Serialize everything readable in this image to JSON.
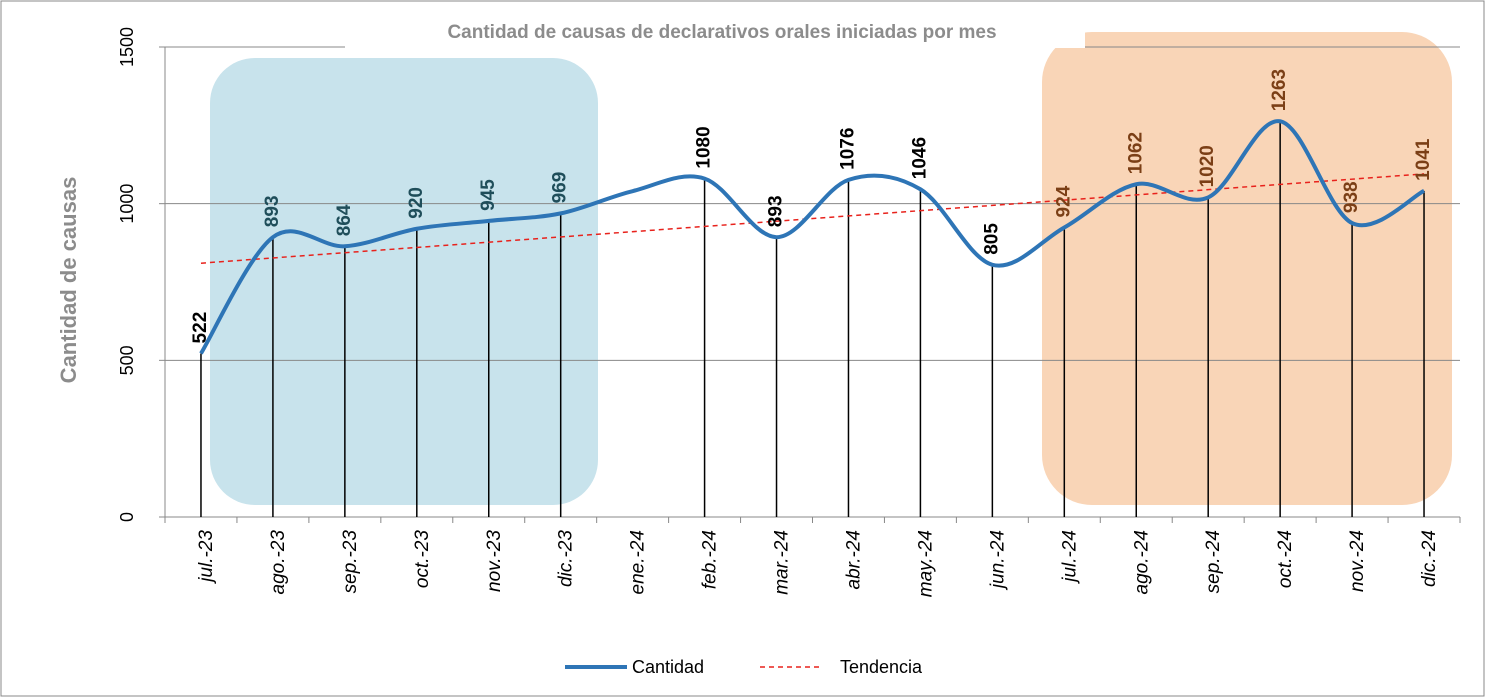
{
  "chart_data": {
    "type": "line",
    "title": "Cantidad de causas de declarativos orales iniciadas por mes",
    "y_label": "Cantidad de causas",
    "categories": [
      "jul.-23",
      "ago.-23",
      "sep.-23",
      "oct.-23",
      "nov.-23",
      "dic.-23",
      "ene.-24",
      "feb.-24",
      "mar.-24",
      "abr.-24",
      "may.-24",
      "jun.-24",
      "jul.-24",
      "ago.-24",
      "sep.-24",
      "oct.-24",
      "nov.-24",
      "dic.-24"
    ],
    "series": [
      {
        "name": "Cantidad",
        "color": "#2e75b6",
        "values": [
          522,
          893,
          864,
          920,
          945,
          969,
          1040,
          1080,
          893,
          1076,
          1046,
          805,
          924,
          1062,
          1020,
          1263,
          938,
          1041
        ],
        "value_labels": [
          "522",
          "893",
          "864",
          "920",
          "945",
          "969",
          null,
          "1080",
          "893",
          "1076",
          "1046",
          "805",
          "924",
          "1062",
          "1020",
          "1263",
          "938",
          "1041"
        ]
      }
    ],
    "trendline": {
      "name": "Tendencia",
      "color": "#e8221c",
      "start": 810,
      "end": 1095
    },
    "ylim": [
      0,
      1500
    ],
    "yticks": [
      0,
      500,
      1000,
      1500
    ],
    "grid": true
  }
}
